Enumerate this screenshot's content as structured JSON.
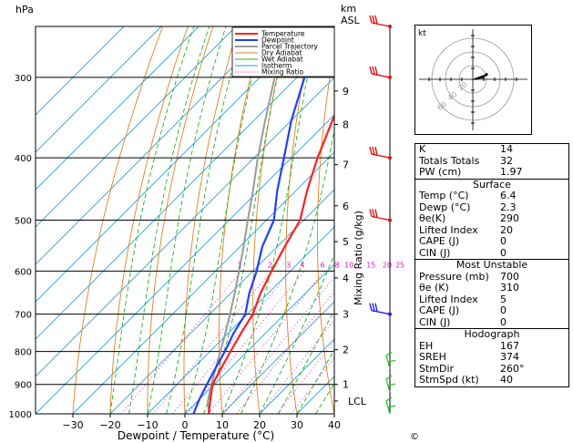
{
  "chart_data": {
    "type": "line",
    "title": "",
    "xlabel": "Dewpoint / Temperature (°C)",
    "ylabel_left": "hPa",
    "ylabel_right_top": "km",
    "ylabel_right_sub": "ASL",
    "mixing_ratio_axis_label": "Mixing Ratio (g/kg)",
    "x_ticks": [
      -30,
      -20,
      -10,
      0,
      10,
      20,
      30,
      40
    ],
    "x_tick_labels": [
      "−30",
      "−20",
      "−10",
      "0",
      "10",
      "20",
      "30",
      "40"
    ],
    "xlim": [
      -40,
      40
    ],
    "pressure_levels": [
      300,
      400,
      500,
      600,
      700,
      800,
      900,
      1000
    ],
    "pressure_tick_labels": [
      "300",
      "400",
      "500",
      "600",
      "700",
      "800",
      "900",
      "1000"
    ],
    "plim": [
      1000,
      250
    ],
    "km_ticks": [
      {
        "label": "9",
        "p": 315
      },
      {
        "label": "8",
        "p": 355
      },
      {
        "label": "7",
        "p": 410
      },
      {
        "label": "6",
        "p": 475
      },
      {
        "label": "5",
        "p": 540
      },
      {
        "label": "4",
        "p": 615
      },
      {
        "label": "3",
        "p": 700
      },
      {
        "label": "2",
        "p": 795
      },
      {
        "label": "1",
        "p": 900
      },
      {
        "label": "LCL",
        "p": 955
      }
    ],
    "mixing_ratio_labels": [
      "1",
      "2",
      "3",
      "4",
      "6",
      "8",
      "10",
      "15",
      "20",
      "25"
    ],
    "mixing_ratio_values": [
      1,
      2,
      3,
      4,
      6,
      8,
      10,
      15,
      20,
      25
    ],
    "legend": [
      "Temperature",
      "Dewpoint",
      "Parcel Trajectory",
      "Dry Adiabat",
      "Wet Adiabat",
      "Isotherm",
      "Mixing Ratio"
    ],
    "legend_position": "top-right",
    "colors": {
      "temperature": "#ff2020",
      "dewpoint": "#1f3fff",
      "parcel": "#9a9a9a",
      "dry_adiabat": "#e08020",
      "wet_adiabat": "#20b020",
      "isotherm": "#20a0e0",
      "mixing_ratio": "#d020c0",
      "wind": "#e01010",
      "wind_low": "#2020e0",
      "wind_sfc": "#20c020"
    },
    "series": [
      {
        "name": "Temperature",
        "points": [
          [
            1000,
            6.4
          ],
          [
            950,
            3
          ],
          [
            900,
            -0.5
          ],
          [
            850,
            -2.5
          ],
          [
            800,
            -4.5
          ],
          [
            750,
            -6.5
          ],
          [
            700,
            -8.5
          ],
          [
            650,
            -12
          ],
          [
            600,
            -15
          ],
          [
            550,
            -18
          ],
          [
            500,
            -21
          ],
          [
            450,
            -27
          ],
          [
            400,
            -33
          ],
          [
            350,
            -39
          ],
          [
            300,
            -45.5
          ],
          [
            250,
            -53
          ]
        ]
      },
      {
        "name": "Dewpoint",
        "points": [
          [
            1000,
            2.3
          ],
          [
            950,
            0
          ],
          [
            900,
            -2
          ],
          [
            850,
            -4
          ],
          [
            800,
            -6
          ],
          [
            750,
            -8.5
          ],
          [
            700,
            -10.5
          ],
          [
            650,
            -15
          ],
          [
            600,
            -19
          ],
          [
            550,
            -24
          ],
          [
            500,
            -28
          ],
          [
            450,
            -35
          ],
          [
            400,
            -42
          ],
          [
            350,
            -50
          ],
          [
            300,
            -58
          ],
          [
            250,
            -64
          ]
        ]
      },
      {
        "name": "Parcel Trajectory",
        "points": [
          [
            1000,
            6.4
          ],
          [
            955,
            2.7
          ],
          [
            900,
            -0.8
          ],
          [
            850,
            -3.9
          ],
          [
            800,
            -7.2
          ],
          [
            750,
            -10.7
          ],
          [
            700,
            -14.6
          ],
          [
            650,
            -18.9
          ],
          [
            600,
            -23.7
          ],
          [
            550,
            -29
          ],
          [
            500,
            -35
          ],
          [
            450,
            -41.5
          ],
          [
            400,
            -49
          ],
          [
            350,
            -57
          ],
          [
            300,
            -66
          ]
        ]
      }
    ],
    "wind_barbs": [
      {
        "p": 250,
        "color": "wind"
      },
      {
        "p": 300,
        "color": "wind"
      },
      {
        "p": 400,
        "color": "wind"
      },
      {
        "p": 500,
        "color": "wind"
      },
      {
        "p": 700,
        "color": "wind_low"
      },
      {
        "p": 850,
        "color": "wind_sfc"
      },
      {
        "p": 925,
        "color": "wind_sfc"
      },
      {
        "p": 1000,
        "color": "wind_sfc"
      }
    ]
  },
  "hodograph": {
    "unit_label": "kt",
    "ring_labels": [
      "20",
      "40",
      "60"
    ],
    "curve": [
      [
        0,
        0
      ],
      [
        5,
        0
      ],
      [
        15,
        3
      ],
      [
        20,
        7
      ],
      [
        12,
        4
      ],
      [
        3,
        1
      ]
    ]
  },
  "indices": [
    {
      "label": "K",
      "value": "14"
    },
    {
      "label": "Totals Totals",
      "value": "32"
    },
    {
      "label": "PW (cm)",
      "value": "1.97"
    }
  ],
  "surface": {
    "title": "Surface",
    "rows": [
      {
        "label": "Temp (°C)",
        "value": "6.4"
      },
      {
        "label": "Dewp (°C)",
        "value": "2.3"
      },
      {
        "label": "θe(K)",
        "value": "290"
      },
      {
        "label": "Lifted Index",
        "value": "20"
      },
      {
        "label": "CAPE (J)",
        "value": "0"
      },
      {
        "label": "CIN (J)",
        "value": "0"
      }
    ]
  },
  "most_unstable": {
    "title": "Most Unstable",
    "rows": [
      {
        "label": "Pressure (mb)",
        "value": "700"
      },
      {
        "label": "θe (K)",
        "value": "310"
      },
      {
        "label": "Lifted Index",
        "value": "5"
      },
      {
        "label": "CAPE (J)",
        "value": "0"
      },
      {
        "label": "CIN (J)",
        "value": "0"
      }
    ]
  },
  "hodograph_stats": {
    "title": "Hodograph",
    "rows": [
      {
        "label": "EH",
        "value": "167"
      },
      {
        "label": "SREH",
        "value": "374"
      },
      {
        "label": "StmDir",
        "value": "260°"
      },
      {
        "label": "StmSpd (kt)",
        "value": "40"
      }
    ]
  },
  "copyright_symbol": "©"
}
